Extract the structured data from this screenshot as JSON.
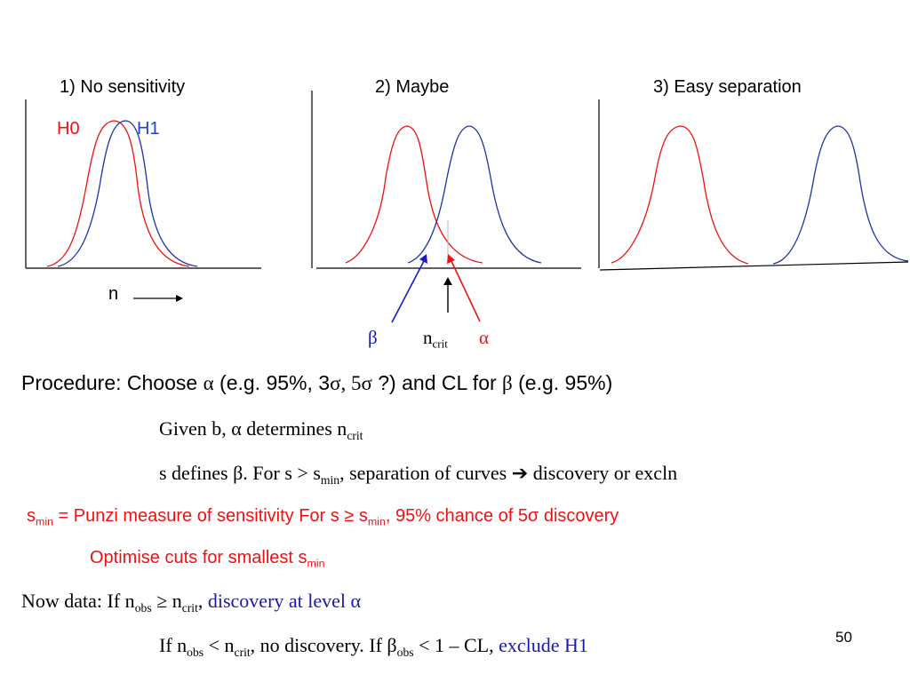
{
  "panels": {
    "p1_title": "1)  No sensitivity",
    "p2_title": "2) Maybe",
    "p3_title": "3) Easy separation",
    "h0_label": "H0",
    "h1_label": "H1",
    "n_axis_label": "n",
    "beta_label": "β",
    "ncrit_base": "n",
    "ncrit_sub": "crit",
    "alpha_label": "α"
  },
  "text": {
    "procedure": {
      "a": "Procedure:  Choose ",
      "alpha": "α",
      "b": " (e.g. 95%, 3",
      "sigma1": "σ",
      "c": ", 5",
      "sigma2": "σ",
      "d": " ?) and CL for ",
      "beta": "β",
      "e": "  (e.g. 95%)"
    },
    "given": {
      "a": "Given b, α determines n",
      "sub": "crit"
    },
    "sdefines": {
      "a": "s defines  β.    For s > s",
      "sub": "min",
      "b": ", separation of curves ",
      "arrow": "➔",
      "c": " discovery or excln"
    },
    "punzi": {
      "a": "s",
      "sub1": "min",
      "b": " = Punzi measure of sensitivity   For s ≥ s",
      "sub2": "min",
      "c": ", 95% chance of 5σ discovery"
    },
    "optimise": {
      "a": "Optimise cuts for smallest s",
      "sub": "min"
    },
    "nowdata": {
      "a": "Now data:      If n",
      "sub1": "obs",
      "b": " ≥ n",
      "sub2": "crit",
      "c": ", ",
      "blue": "discovery at level α"
    },
    "ifn": {
      "a": "If n",
      "sub1": "obs",
      "b": " < n",
      "sub2": "crit",
      "c": ", no discovery.  If β",
      "sub3": "obs",
      "d": " < 1 – CL, ",
      "blue": "exclude H1"
    }
  },
  "page_number": "50",
  "colors": {
    "h0": "#ee1111",
    "h1": "#2233aa",
    "axis": "#000000"
  }
}
